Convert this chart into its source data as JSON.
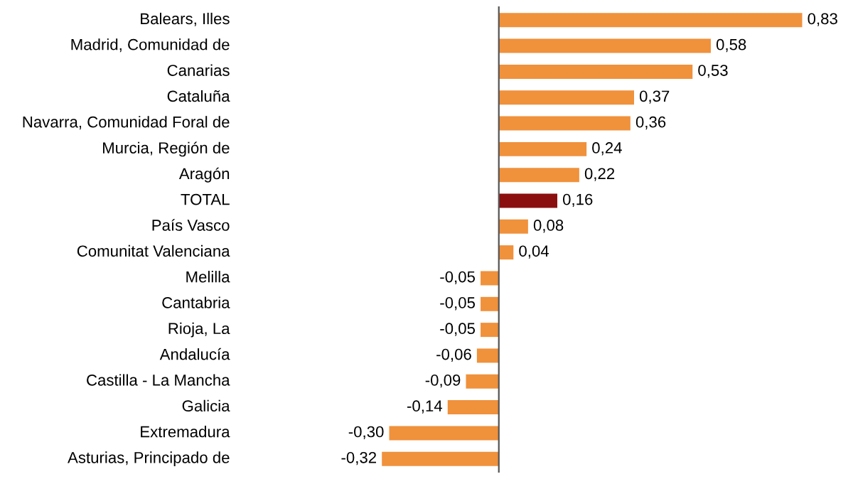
{
  "chart_data": {
    "type": "bar",
    "orientation": "horizontal",
    "categories": [
      "Balears, Illes",
      "Madrid, Comunidad de",
      "Canarias",
      "Cataluña",
      "Navarra, Comunidad Foral de",
      "Murcia, Región de",
      "Aragón",
      "TOTAL",
      "País Vasco",
      "Comunitat Valenciana",
      "Melilla",
      "Cantabria",
      "Rioja, La",
      "Andalucía",
      "Castilla - La Mancha",
      "Galicia",
      "Extremadura",
      "Asturias, Principado de"
    ],
    "values": [
      0.83,
      0.58,
      0.53,
      0.37,
      0.36,
      0.24,
      0.22,
      0.16,
      0.08,
      0.04,
      -0.05,
      -0.05,
      -0.05,
      -0.06,
      -0.09,
      -0.14,
      -0.3,
      -0.32
    ],
    "colors": [
      "#f0913c",
      "#f0913c",
      "#f0913c",
      "#f0913c",
      "#f0913c",
      "#f0913c",
      "#f0913c",
      "#8c0f0f",
      "#f0913c",
      "#f0913c",
      "#f0913c",
      "#f0913c",
      "#f0913c",
      "#f0913c",
      "#f0913c",
      "#f0913c",
      "#f0913c",
      "#f0913c"
    ],
    "value_labels": [
      "0,83",
      "0,58",
      "0,53",
      "0,37",
      "0,36",
      "0,24",
      "0,22",
      "0,16",
      "0,08",
      "0,04",
      "-0,05",
      "-0,05",
      "-0,05",
      "-0,06",
      "-0,09",
      "-0,14",
      "-0,30",
      "-0,32"
    ]
  }
}
